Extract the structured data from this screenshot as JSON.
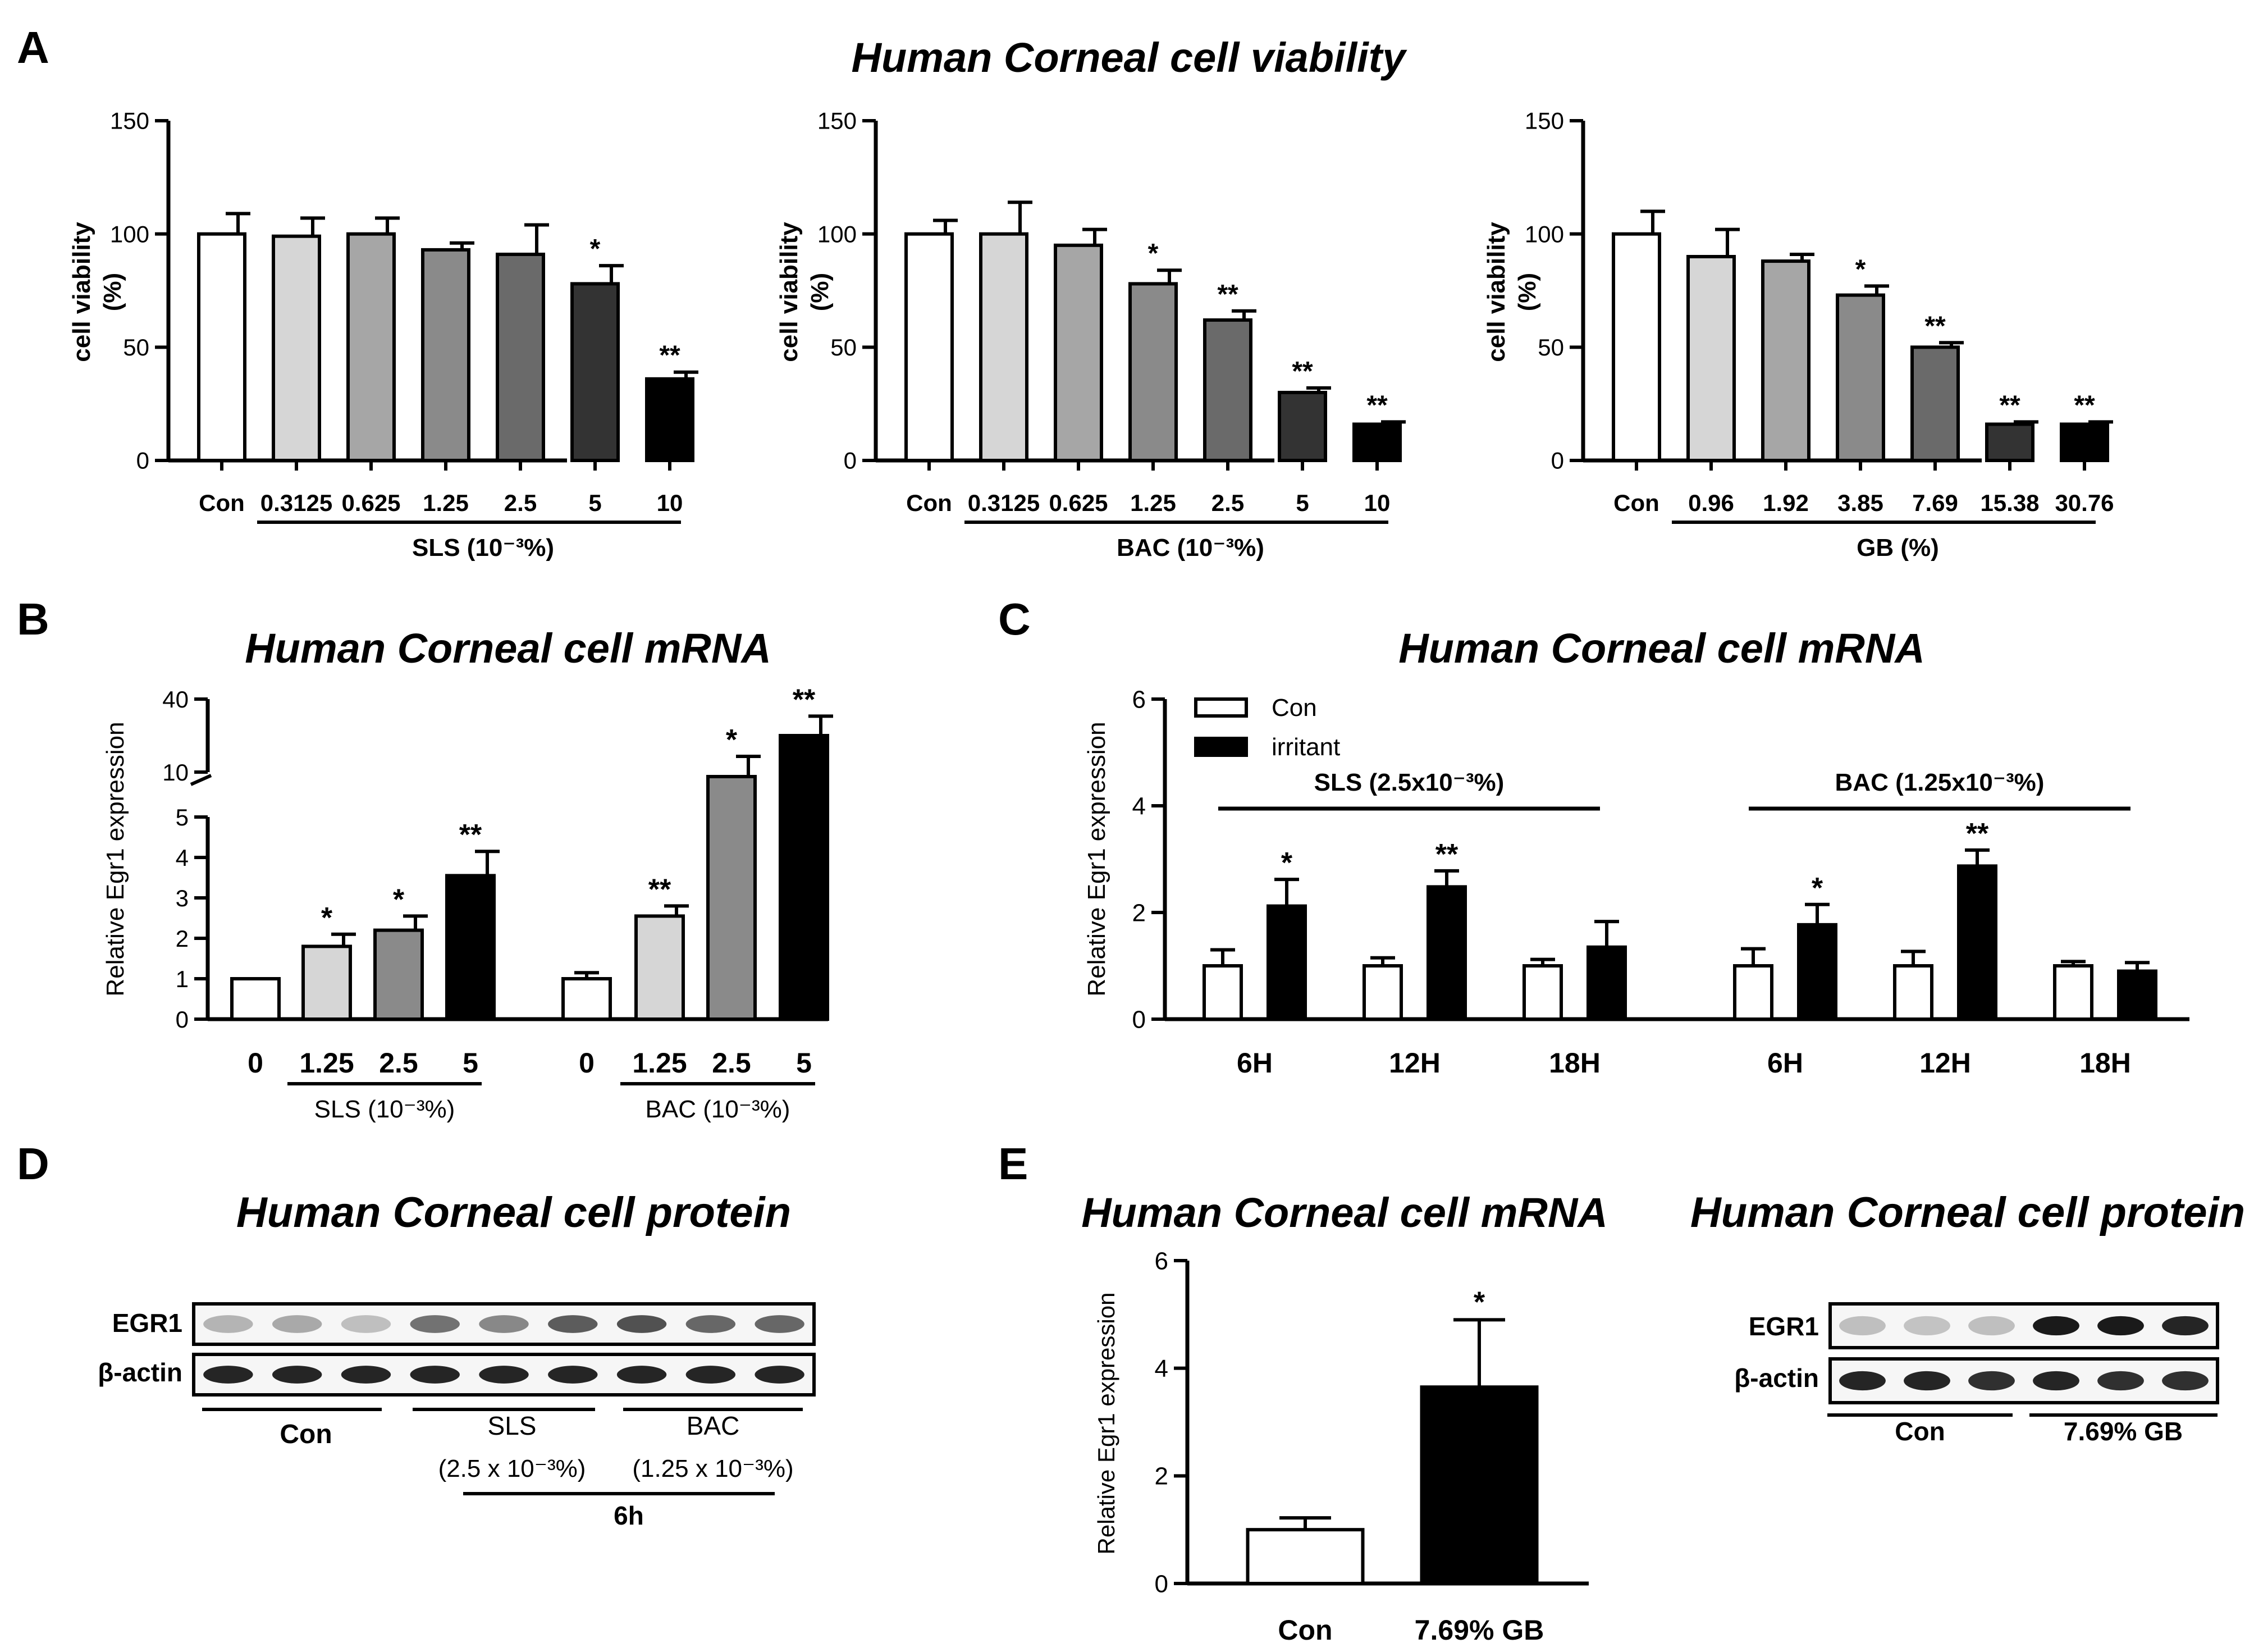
{
  "figure": {
    "panel_letters": [
      "A",
      "B",
      "C",
      "D",
      "E"
    ],
    "colors": {
      "white": "#ffffff",
      "light": "#d6d6d6",
      "mid_light": "#a6a6a6",
      "mid": "#8a8a8a",
      "mid_dark": "#6a6a6a",
      "dark": "#4a4a4a",
      "darker": "#333333",
      "black": "#000000"
    }
  },
  "chart_data": [
    {
      "id": "A1",
      "type": "bar",
      "panel": "A",
      "title": "Human Corneal cell viability",
      "ylabel": "cell viability (%)",
      "ylabel_lines": [
        "cell viability",
        "(%)"
      ],
      "ylim": [
        0,
        150
      ],
      "yticks": [
        0,
        50,
        100,
        150
      ],
      "categories": [
        "Con",
        "0.3125",
        "0.625",
        "1.25",
        "2.5",
        "5",
        "10"
      ],
      "values": [
        100,
        99,
        100,
        93,
        91,
        78,
        36
      ],
      "errors": [
        9,
        8,
        7,
        3,
        13,
        8,
        3
      ],
      "significance": [
        "",
        "",
        "",
        "",
        "",
        "*",
        "**"
      ],
      "group_label": "SLS (10⁻³%)",
      "fills": [
        "#ffffff",
        "#d6d6d6",
        "#a6a6a6",
        "#8a8a8a",
        "#6a6a6a",
        "#333333",
        "#000000"
      ]
    },
    {
      "id": "A2",
      "type": "bar",
      "panel": "A",
      "ylabel": "cell viability (%)",
      "ylabel_lines": [
        "cell viability",
        "(%)"
      ],
      "ylim": [
        0,
        150
      ],
      "yticks": [
        0,
        50,
        100,
        150
      ],
      "categories": [
        "Con",
        "0.3125",
        "0.625",
        "1.25",
        "2.5",
        "5",
        "10"
      ],
      "values": [
        100,
        100,
        95,
        78,
        62,
        30,
        16
      ],
      "errors": [
        6,
        14,
        7,
        6,
        4,
        2,
        1
      ],
      "significance": [
        "",
        "",
        "",
        "*",
        "**",
        "**",
        "**"
      ],
      "group_label": "BAC (10⁻³%)",
      "fills": [
        "#ffffff",
        "#d6d6d6",
        "#a6a6a6",
        "#8a8a8a",
        "#6a6a6a",
        "#333333",
        "#000000"
      ]
    },
    {
      "id": "A3",
      "type": "bar",
      "panel": "A",
      "ylabel": "cell viability (%)",
      "ylabel_lines": [
        "cell viability",
        "(%)"
      ],
      "ylim": [
        0,
        150
      ],
      "yticks": [
        0,
        50,
        100,
        150
      ],
      "categories": [
        "Con",
        "0.96",
        "1.92",
        "3.85",
        "7.69",
        "15.38",
        "30.76"
      ],
      "values": [
        100,
        90,
        88,
        73,
        50,
        16,
        16
      ],
      "errors": [
        10,
        12,
        3,
        4,
        2,
        1,
        1
      ],
      "significance": [
        "",
        "",
        "",
        "*",
        "**",
        "**",
        "**"
      ],
      "group_label": "GB (%)",
      "fills": [
        "#ffffff",
        "#d6d6d6",
        "#a6a6a6",
        "#8a8a8a",
        "#6a6a6a",
        "#333333",
        "#000000"
      ]
    },
    {
      "id": "B",
      "type": "bar",
      "panel": "B",
      "title": "Human Corneal cell mRNA",
      "ylabel": "Relative Egr1 expression",
      "y_axis_broken": true,
      "yticks_lower": [
        0,
        1,
        2,
        3,
        4,
        5
      ],
      "yticks_upper": [
        10,
        40
      ],
      "groups": [
        {
          "label": "SLS (10⁻³%)",
          "categories": [
            "0",
            "1.25",
            "2.5",
            "5"
          ],
          "values": [
            1.0,
            1.8,
            2.2,
            3.55
          ],
          "errors": [
            0.05,
            0.3,
            0.35,
            0.6
          ],
          "significance": [
            "",
            "*",
            "*",
            "**"
          ]
        },
        {
          "label": "BAC (10⁻³%)",
          "categories": [
            "0",
            "1.25",
            "2.5",
            "5"
          ],
          "values": [
            1.0,
            2.55,
            8.0,
            25.0
          ],
          "errors": [
            0.15,
            0.25,
            1.5,
            8.0
          ],
          "significance": [
            "",
            "**",
            "*",
            "**"
          ]
        }
      ],
      "fills": [
        "#ffffff",
        "#d6d6d6",
        "#8a8a8a",
        "#000000"
      ]
    },
    {
      "id": "C",
      "type": "bar",
      "panel": "C",
      "title": "Human Corneal cell mRNA",
      "ylabel": "Relative Egr1 expression",
      "ylim": [
        0,
        6
      ],
      "yticks": [
        0,
        2,
        4,
        6
      ],
      "legend": [
        "Con",
        "irritant"
      ],
      "series": [
        {
          "name": "Con",
          "values": [
            1.0,
            1.0,
            1.0,
            1.0,
            1.0,
            1.0
          ],
          "errors": [
            0.3,
            0.15,
            0.12,
            0.32,
            0.27,
            0.08
          ]
        },
        {
          "name": "irritant",
          "values": [
            2.12,
            2.48,
            1.35,
            1.77,
            2.87,
            0.9
          ],
          "errors": [
            0.5,
            0.3,
            0.48,
            0.38,
            0.3,
            0.16
          ]
        }
      ],
      "categories": [
        "6H",
        "12H",
        "18H",
        "6H",
        "12H",
        "18H"
      ],
      "significance": [
        "*",
        "**",
        "",
        "*",
        "**",
        ""
      ],
      "group_labels": [
        "SLS (2.5x10⁻³%)",
        "BAC (1.25x10⁻³%)"
      ]
    },
    {
      "id": "E",
      "type": "bar",
      "panel": "E",
      "title": "Human Corneal cell mRNA",
      "ylabel": "Relative Egr1 expression",
      "ylim": [
        0,
        6
      ],
      "yticks": [
        0,
        2,
        4,
        6
      ],
      "categories": [
        "Con",
        "7.69% GB"
      ],
      "values": [
        1.0,
        3.65
      ],
      "errors": [
        0.22,
        1.25
      ],
      "significance": [
        "",
        "*"
      ],
      "fills": [
        "#ffffff",
        "#000000"
      ]
    }
  ],
  "blots": {
    "D": {
      "title": "Human Corneal cell protein",
      "rows": [
        "EGR1",
        "β-actin"
      ],
      "group_labels": [
        "Con",
        "SLS",
        "BAC"
      ],
      "sublabels": [
        "(2.5 x 10⁻³%)",
        "(1.25 x 10⁻³%)"
      ],
      "time_label": "6h",
      "egr1_intensity": [
        0.25,
        0.3,
        0.2,
        0.55,
        0.45,
        0.65,
        0.7,
        0.6,
        0.6
      ],
      "actin_intensity": [
        0.9,
        0.9,
        0.9,
        0.9,
        0.9,
        0.9,
        0.9,
        0.9,
        0.9
      ]
    },
    "E": {
      "title": "Human Corneal cell protein",
      "rows": [
        "EGR1",
        "β-actin"
      ],
      "group_labels": [
        "Con",
        "7.69% GB"
      ],
      "egr1_intensity": [
        0.2,
        0.18,
        0.2,
        0.95,
        0.95,
        0.9
      ],
      "actin_intensity": [
        0.9,
        0.9,
        0.85,
        0.9,
        0.85,
        0.85
      ]
    }
  }
}
